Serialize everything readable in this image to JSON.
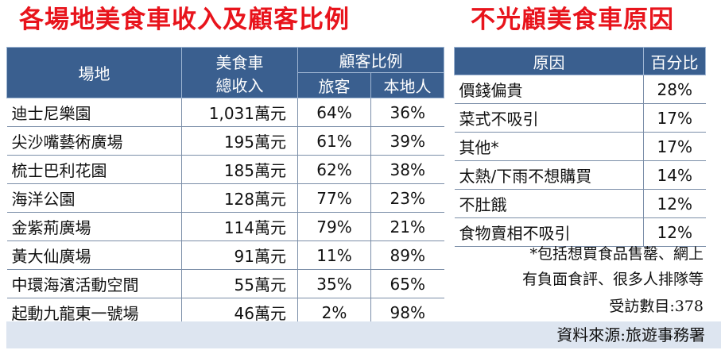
{
  "titles": {
    "left": "各場地美食車收入及顧客比例",
    "right": "不光顧美食車原因"
  },
  "left_table": {
    "headers": {
      "venue": "場地",
      "revenue_line1": "美食車",
      "revenue_line2": "總收入",
      "ratio": "顧客比例",
      "tourists": "旅客",
      "locals": "本地人"
    },
    "rows": [
      {
        "venue": "迪士尼樂園",
        "revenue": "1,031萬元",
        "tourists": "64%",
        "locals": "36%"
      },
      {
        "venue": "尖沙嘴藝術廣場",
        "revenue": "195萬元",
        "tourists": "61%",
        "locals": "39%"
      },
      {
        "venue": "梳士巴利花園",
        "revenue": "185萬元",
        "tourists": "62%",
        "locals": "38%"
      },
      {
        "venue": "海洋公園",
        "revenue": "128萬元",
        "tourists": "77%",
        "locals": "23%"
      },
      {
        "venue": "金紫荊廣場",
        "revenue": "114萬元",
        "tourists": "79%",
        "locals": "21%"
      },
      {
        "venue": "黃大仙廣場",
        "revenue": "91萬元",
        "tourists": "11%",
        "locals": "89%"
      },
      {
        "venue": "中環海濱活動空間",
        "revenue": "55萬元",
        "tourists": "35%",
        "locals": "65%"
      },
      {
        "venue": "起動九龍東一號場",
        "revenue": "46萬元",
        "tourists": "2%",
        "locals": "98%"
      }
    ]
  },
  "right_table": {
    "headers": {
      "reason": "原因",
      "percent": "百分比"
    },
    "rows": [
      {
        "reason": "價錢偏貴",
        "percent": "28%"
      },
      {
        "reason": "菜式不吸引",
        "percent": "17%"
      },
      {
        "reason": "其他*",
        "percent": "17%"
      },
      {
        "reason": "太熱/下雨不想購買",
        "percent": "14%"
      },
      {
        "reason": "不肚餓",
        "percent": "12%"
      },
      {
        "reason": "食物賣相不吸引",
        "percent": "12%"
      }
    ]
  },
  "notes": {
    "line1": "*包括想買食品售罄、網上",
    "line2": "有負面食評、很多人排隊等",
    "line3": "受訪數目:378"
  },
  "source": "資料來源:旅遊事務署",
  "colors": {
    "title": "#e8141c",
    "header_bg": "#3a5f8f",
    "source_bg": "#dde5f0"
  }
}
